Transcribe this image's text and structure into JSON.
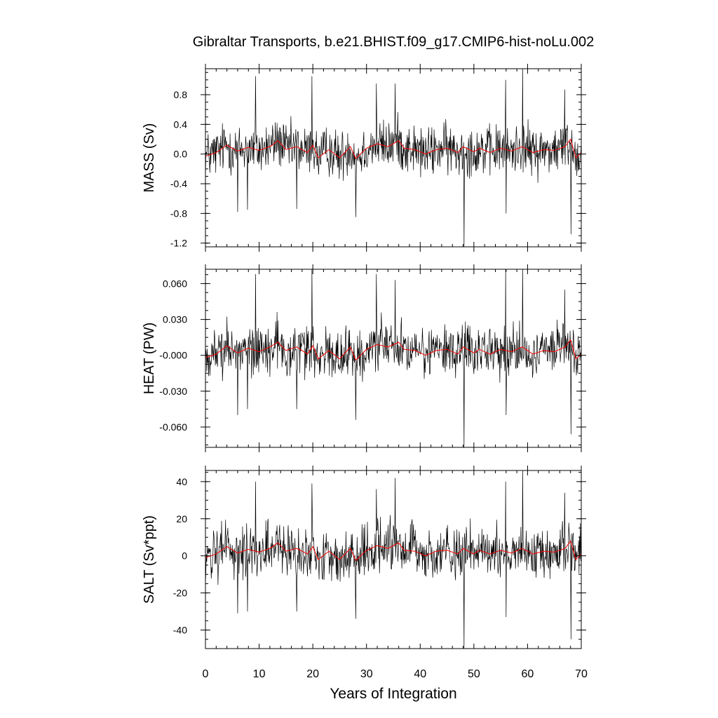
{
  "title": "Gibraltar Transports, b.e21.BHIST.f09_g17.CMIP6-hist-noLu.002",
  "xlabel": "Years of Integration",
  "x_ticks": [
    "0",
    "10",
    "20",
    "30",
    "40",
    "50",
    "60",
    "70"
  ],
  "chart_data": [
    {
      "type": "line",
      "ylabel": "MASS (Sv)",
      "xlim": [
        0,
        70
      ],
      "ylim": [
        -1.25,
        1.15
      ],
      "y_ticks": [
        {
          "value": 0.8,
          "label": "0.8"
        },
        {
          "value": 0.4,
          "label": "0.4"
        },
        {
          "value": 0.0,
          "label": "0.0"
        },
        {
          "value": -0.4,
          "label": "-0.4"
        },
        {
          "value": -0.8,
          "label": "-0.8"
        },
        {
          "value": -1.2,
          "label": "-1.2"
        }
      ],
      "series": [
        {
          "color": "#000000",
          "style": "monthly",
          "spikes": [
            [
              9.3,
              1.05
            ],
            [
              19.8,
              1.05
            ],
            [
              31.8,
              0.95
            ],
            [
              35.3,
              0.95
            ],
            [
              55.9,
              1.0
            ],
            [
              59.1,
              1.18
            ],
            [
              66.9,
              0.87
            ],
            [
              48.2,
              -1.25
            ],
            [
              68.1,
              -1.08
            ],
            [
              28.0,
              -0.85
            ],
            [
              56.0,
              -0.8
            ],
            [
              6.0,
              -0.78
            ],
            [
              7.8,
              -0.75
            ],
            [
              17.0,
              -0.74
            ]
          ]
        },
        {
          "color": "#ff0000",
          "style": "smoothed",
          "points": [
            [
              0,
              -0.03
            ],
            [
              2,
              0.02
            ],
            [
              4,
              0.12
            ],
            [
              6,
              0.04
            ],
            [
              8,
              0.09
            ],
            [
              10,
              0.05
            ],
            [
              12,
              0.1
            ],
            [
              13.5,
              0.18
            ],
            [
              15,
              0.06
            ],
            [
              17,
              0.1
            ],
            [
              19,
              0.02
            ],
            [
              20,
              0.12
            ],
            [
              21,
              -0.05
            ],
            [
              23,
              0.06
            ],
            [
              25,
              -0.05
            ],
            [
              27,
              0.1
            ],
            [
              28,
              -0.06
            ],
            [
              30,
              0.08
            ],
            [
              32,
              0.14
            ],
            [
              34,
              0.1
            ],
            [
              36,
              0.18
            ],
            [
              37,
              0.08
            ],
            [
              39,
              0.06
            ],
            [
              41,
              0.0
            ],
            [
              43,
              0.06
            ],
            [
              45,
              0.08
            ],
            [
              47,
              0.02
            ],
            [
              48,
              0.1
            ],
            [
              50,
              0.03
            ],
            [
              51,
              0.08
            ],
            [
              53,
              0.02
            ],
            [
              55,
              0.08
            ],
            [
              57,
              0.04
            ],
            [
              59,
              0.1
            ],
            [
              61,
              0.02
            ],
            [
              63,
              0.06
            ],
            [
              65,
              0.05
            ],
            [
              67,
              0.1
            ],
            [
              68,
              0.2
            ],
            [
              69,
              -0.05
            ],
            [
              70,
              0.02
            ]
          ]
        }
      ]
    },
    {
      "type": "line",
      "ylabel": "HEAT (PW)",
      "xlim": [
        0,
        70
      ],
      "ylim": [
        -0.077,
        0.072
      ],
      "y_ticks": [
        {
          "value": 0.06,
          "label": "0.060"
        },
        {
          "value": 0.03,
          "label": "0.030"
        },
        {
          "value": 0.0,
          "label": "-0.000"
        },
        {
          "value": -0.03,
          "label": "-0.030"
        },
        {
          "value": -0.06,
          "label": "-0.060"
        }
      ],
      "series": [
        {
          "color": "#000000",
          "style": "monthly",
          "spikes": [
            [
              9.3,
              0.068
            ],
            [
              19.8,
              0.072
            ],
            [
              31.8,
              0.068
            ],
            [
              35.3,
              0.063
            ],
            [
              55.9,
              0.072
            ],
            [
              59.1,
              0.074
            ],
            [
              66.9,
              0.055
            ],
            [
              48.2,
              -0.077
            ],
            [
              68.1,
              -0.066
            ],
            [
              28.0,
              -0.054
            ],
            [
              56.0,
              -0.05
            ],
            [
              6.0,
              -0.05
            ],
            [
              7.8,
              -0.045
            ],
            [
              17.0,
              -0.045
            ]
          ]
        },
        {
          "color": "#ff0000",
          "style": "smoothed",
          "points": [
            [
              0,
              -0.002
            ],
            [
              2,
              0.001
            ],
            [
              4,
              0.008
            ],
            [
              6,
              0.002
            ],
            [
              8,
              0.006
            ],
            [
              10,
              0.003
            ],
            [
              12,
              0.007
            ],
            [
              13.5,
              0.011
            ],
            [
              15,
              0.004
            ],
            [
              17,
              0.007
            ],
            [
              19,
              0.001
            ],
            [
              20,
              0.008
            ],
            [
              21,
              -0.003
            ],
            [
              23,
              0.004
            ],
            [
              25,
              -0.003
            ],
            [
              27,
              0.007
            ],
            [
              28,
              -0.004
            ],
            [
              30,
              0.005
            ],
            [
              32,
              0.009
            ],
            [
              34,
              0.007
            ],
            [
              36,
              0.011
            ],
            [
              37,
              0.005
            ],
            [
              39,
              0.004
            ],
            [
              41,
              0.0
            ],
            [
              43,
              0.004
            ],
            [
              45,
              0.005
            ],
            [
              47,
              0.001
            ],
            [
              48,
              0.007
            ],
            [
              50,
              0.002
            ],
            [
              51,
              0.005
            ],
            [
              53,
              0.001
            ],
            [
              55,
              0.005
            ],
            [
              57,
              0.003
            ],
            [
              59,
              0.007
            ],
            [
              61,
              0.001
            ],
            [
              63,
              0.004
            ],
            [
              65,
              0.003
            ],
            [
              67,
              0.007
            ],
            [
              68,
              0.013
            ],
            [
              69,
              -0.003
            ],
            [
              70,
              0.001
            ]
          ]
        }
      ]
    },
    {
      "type": "line",
      "ylabel": "SALT (Sv*ppt)",
      "xlim": [
        0,
        70
      ],
      "ylim": [
        -50,
        46
      ],
      "y_ticks": [
        {
          "value": 40,
          "label": "40"
        },
        {
          "value": 20,
          "label": "20"
        },
        {
          "value": 0,
          "label": "0"
        },
        {
          "value": -20,
          "label": "-20"
        },
        {
          "value": -40,
          "label": "-40"
        }
      ],
      "series": [
        {
          "color": "#000000",
          "style": "monthly",
          "spikes": [
            [
              9.3,
              40
            ],
            [
              19.8,
              39
            ],
            [
              31.8,
              36
            ],
            [
              35.3,
              42
            ],
            [
              55.9,
              40
            ],
            [
              59.1,
              46
            ],
            [
              66.9,
              34
            ],
            [
              48.2,
              -50
            ],
            [
              68.1,
              -45
            ],
            [
              28.0,
              -34
            ],
            [
              56.0,
              -33
            ],
            [
              6.0,
              -31
            ],
            [
              7.8,
              -30
            ],
            [
              17.0,
              -30
            ]
          ]
        },
        {
          "color": "#ff0000",
          "style": "smoothed",
          "points": [
            [
              0,
              -1
            ],
            [
              2,
              1
            ],
            [
              4,
              5
            ],
            [
              6,
              1.5
            ],
            [
              8,
              3.5
            ],
            [
              10,
              2
            ],
            [
              12,
              4
            ],
            [
              13.5,
              7
            ],
            [
              15,
              2.5
            ],
            [
              17,
              4
            ],
            [
              19,
              1
            ],
            [
              20,
              5
            ],
            [
              21,
              -2
            ],
            [
              23,
              2.5
            ],
            [
              25,
              -2
            ],
            [
              27,
              4
            ],
            [
              28,
              -2.5
            ],
            [
              30,
              3
            ],
            [
              32,
              5.5
            ],
            [
              34,
              4
            ],
            [
              36,
              7
            ],
            [
              37,
              3
            ],
            [
              39,
              2.5
            ],
            [
              41,
              0
            ],
            [
              43,
              2.5
            ],
            [
              45,
              3
            ],
            [
              47,
              1
            ],
            [
              48,
              4
            ],
            [
              50,
              1
            ],
            [
              51,
              3
            ],
            [
              53,
              1
            ],
            [
              55,
              3
            ],
            [
              57,
              1.5
            ],
            [
              59,
              4
            ],
            [
              61,
              1
            ],
            [
              63,
              2.5
            ],
            [
              65,
              2
            ],
            [
              67,
              4
            ],
            [
              68,
              8
            ],
            [
              69,
              -2
            ],
            [
              70,
              1
            ]
          ]
        }
      ]
    }
  ]
}
